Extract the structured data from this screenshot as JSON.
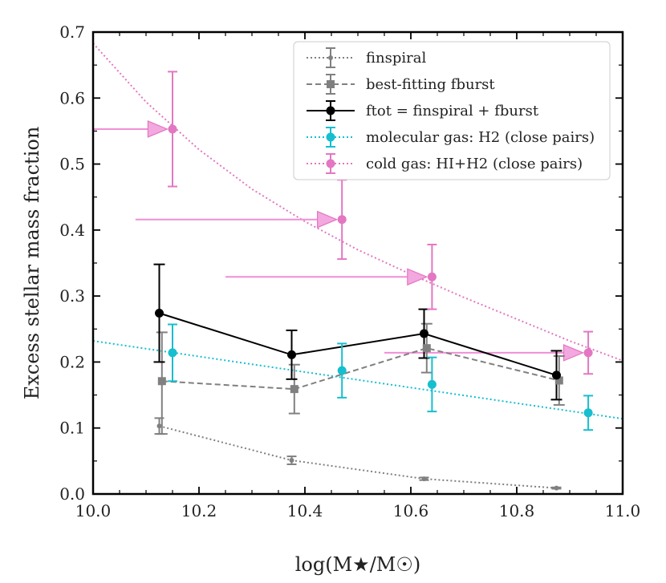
{
  "chart_data": {
    "type": "scatter",
    "title": "",
    "xlabel": "log(M★/M☉)",
    "ylabel": "Excess stellar mass fraction",
    "xlim": [
      10.0,
      11.0
    ],
    "ylim": [
      0.0,
      0.7
    ],
    "xticks": [
      10.0,
      10.2,
      10.4,
      10.6,
      10.8,
      11.0
    ],
    "xtick_labels": [
      "10.0",
      "10.2",
      "10.4",
      "10.6",
      "10.8",
      "11.0"
    ],
    "yticks": [
      0.0,
      0.1,
      0.2,
      0.3,
      0.4,
      0.5,
      0.6,
      0.7
    ],
    "ytick_labels": [
      "0.0",
      "0.1",
      "0.2",
      "0.3",
      "0.4",
      "0.5",
      "0.6",
      "0.7"
    ],
    "grid": false,
    "legend_position": "top-right",
    "series": [
      {
        "name": "f_inspiral",
        "legend_text": "finspiral",
        "color": "#808080",
        "line": "dotted",
        "marker": "circle-small",
        "x": [
          10.125,
          10.375,
          10.625,
          10.875
        ],
        "y": [
          0.103,
          0.051,
          0.023,
          0.009
        ],
        "err_low": [
          0.012,
          0.006,
          0.002,
          0.001
        ],
        "err_high": [
          0.012,
          0.006,
          0.002,
          0.001
        ]
      },
      {
        "name": "best-fitting f_burst",
        "legend_text": "best-fitting fburst",
        "color": "#808080",
        "line": "dashed",
        "marker": "square",
        "x": [
          10.13,
          10.38,
          10.63,
          10.88
        ],
        "y": [
          0.171,
          0.159,
          0.221,
          0.172
        ],
        "err_low": [
          0.08,
          0.037,
          0.037,
          0.037
        ],
        "err_high": [
          0.074,
          0.037,
          0.037,
          0.037
        ]
      },
      {
        "name": "f_tot = f_inspiral + f_burst",
        "legend_text": "ftot = finspiral + fburst",
        "color": "#000000",
        "line": "solid",
        "marker": "circle",
        "x": [
          10.125,
          10.375,
          10.625,
          10.875
        ],
        "y": [
          0.274,
          0.211,
          0.243,
          0.18
        ],
        "err_low": [
          0.074,
          0.037,
          0.037,
          0.037
        ],
        "err_high": [
          0.074,
          0.037,
          0.037,
          0.037
        ]
      },
      {
        "name": "molecular gas: H2 (close pairs)",
        "legend_text": "molecular gas: H2 (close pairs)",
        "color": "#17becf",
        "line": "dotted-fit",
        "marker": "circle",
        "x": [
          10.15,
          10.47,
          10.64,
          10.935
        ],
        "y": [
          0.214,
          0.187,
          0.166,
          0.123
        ],
        "err_low": [
          0.043,
          0.041,
          0.041,
          0.026
        ],
        "err_high": [
          0.043,
          0.041,
          0.041,
          0.026
        ],
        "fit_line": {
          "x": [
            10.0,
            11.0
          ],
          "y": [
            0.232,
            0.114
          ]
        }
      },
      {
        "name": "cold gas: HI+H2 (close pairs)",
        "legend_text": "cold gas: HI+H2 (close pairs)",
        "color": "#e377c2",
        "line": "dotted-fit",
        "marker": "circle",
        "x": [
          10.15,
          10.47,
          10.64,
          10.935
        ],
        "y": [
          0.553,
          0.416,
          0.329,
          0.214
        ],
        "err_low": [
          0.087,
          0.06,
          0.049,
          0.032
        ],
        "err_high": [
          0.087,
          0.06,
          0.049,
          0.032
        ],
        "fit_line": {
          "x": [
            10.0,
            10.1,
            10.2,
            10.3,
            10.4,
            10.5,
            10.6,
            10.7,
            10.8,
            10.9,
            11.0
          ],
          "y": [
            0.683,
            0.594,
            0.522,
            0.462,
            0.413,
            0.37,
            0.333,
            0.298,
            0.265,
            0.232,
            0.202
          ]
        },
        "arrows": [
          {
            "x_start": 10.0,
            "x_end": 10.14,
            "y": 0.553
          },
          {
            "x_start": 10.08,
            "x_end": 10.46,
            "y": 0.416
          },
          {
            "x_start": 10.25,
            "x_end": 10.63,
            "y": 0.329
          },
          {
            "x_start": 10.55,
            "x_end": 10.925,
            "y": 0.214
          }
        ]
      }
    ]
  }
}
